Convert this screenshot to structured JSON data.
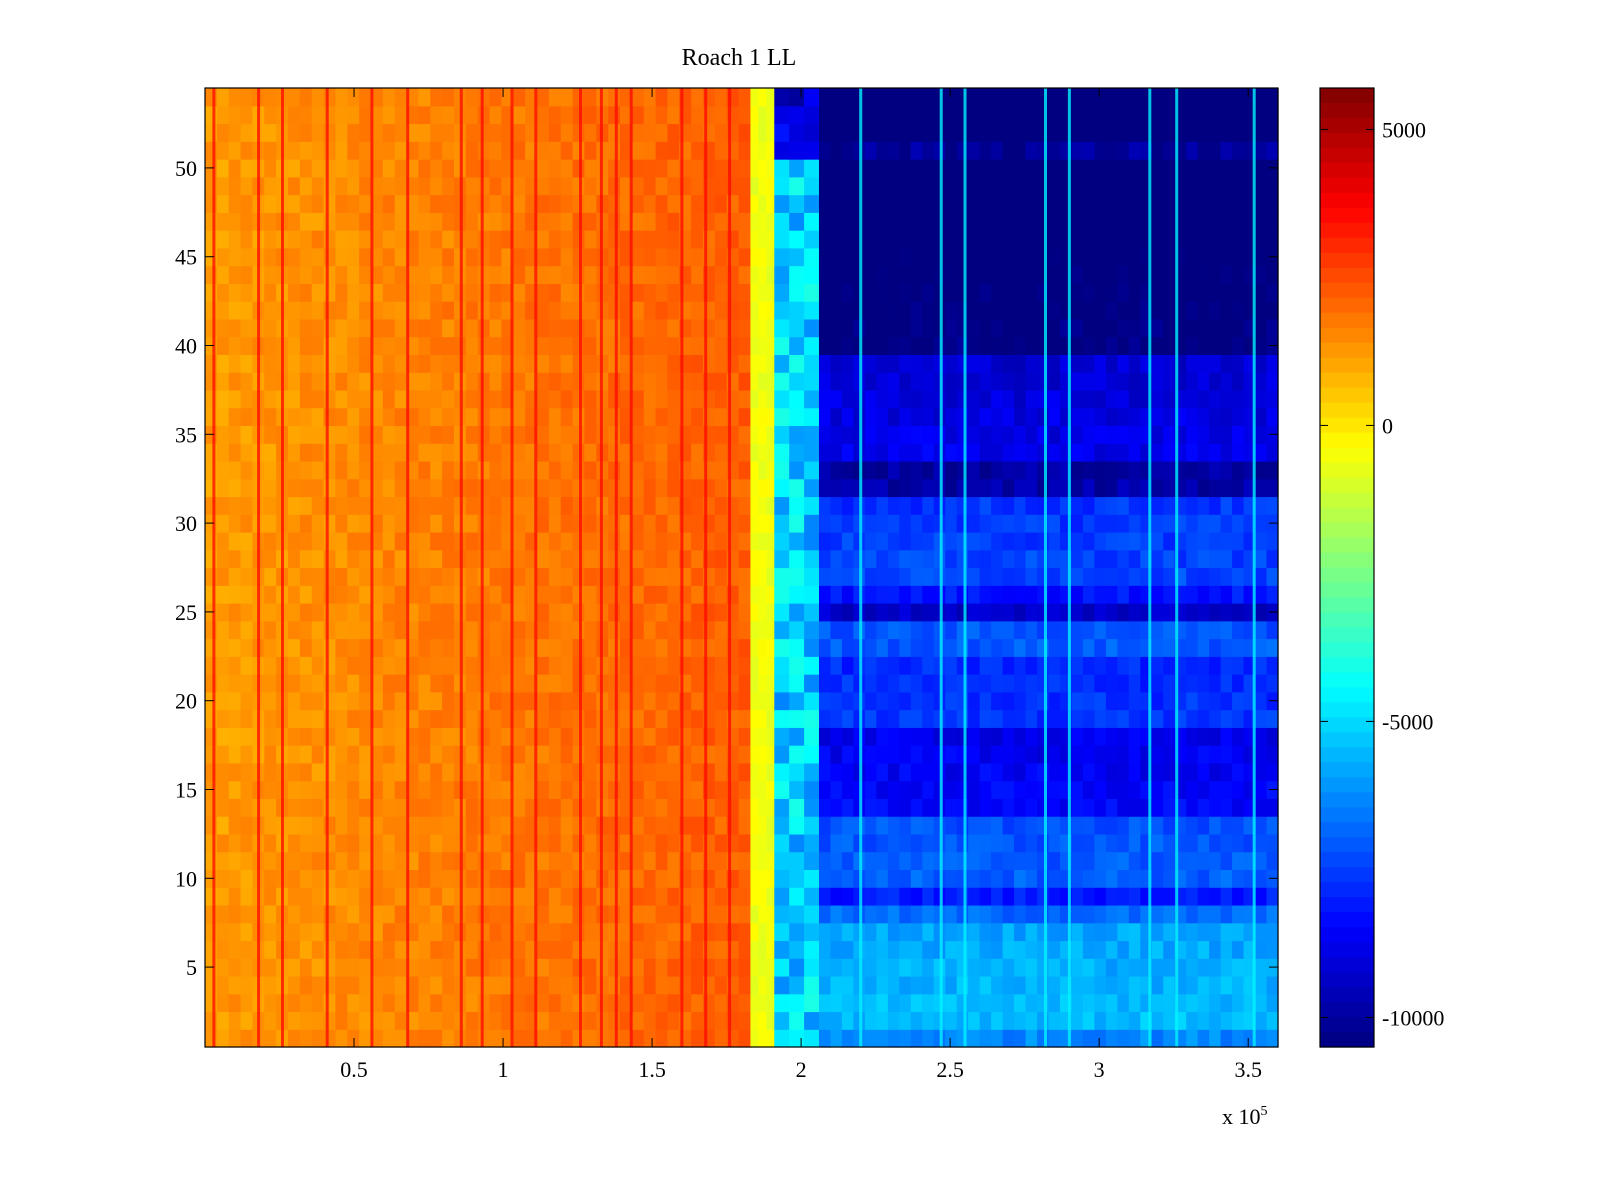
{
  "chart_data": {
    "type": "heatmap",
    "title": "Roach 1 LL",
    "xlabel": "",
    "ylabel": "",
    "x_exponent_label": "x 10",
    "x_exponent_power": "5",
    "xlim": [
      0,
      3.6
    ],
    "ylim": [
      0.5,
      54.5
    ],
    "x_ticks": [
      0.5,
      1,
      1.5,
      2,
      2.5,
      3,
      3.5
    ],
    "x_tick_labels": [
      "0.5",
      "1",
      "1.5",
      "2",
      "2.5",
      "3",
      "3.5"
    ],
    "y_ticks": [
      5,
      10,
      15,
      20,
      25,
      30,
      35,
      40,
      45,
      50
    ],
    "y_tick_labels": [
      "5",
      "10",
      "15",
      "20",
      "25",
      "30",
      "35",
      "40",
      "45",
      "50"
    ],
    "colormap": "jet",
    "clim": [
      -10500,
      5700
    ],
    "colorbar_ticks": [
      5000,
      0,
      -5000,
      -10000
    ],
    "colorbar_tick_labels": [
      "5000",
      "0",
      "-5000",
      "-10000"
    ],
    "rows": 54,
    "segments": [
      {
        "x_start": 0,
        "x_end": 1.83,
        "description": "high region",
        "value_start": 1200,
        "value_end": 2200
      },
      {
        "x_start": 1.83,
        "x_end": 1.91,
        "description": "transition",
        "value": -600
      },
      {
        "x_start": 1.91,
        "x_end": 2.06,
        "description": "mid region",
        "value": -5200
      },
      {
        "x_start": 2.06,
        "x_end": 3.6,
        "description": "low region",
        "value_top": -10300,
        "value_bottom": -6300
      }
    ],
    "dark_rows": [
      9,
      14,
      15,
      16,
      17,
      18,
      25,
      32,
      33,
      40,
      41,
      42,
      43,
      44,
      45,
      46,
      47,
      48,
      49,
      50,
      52,
      53,
      54
    ],
    "bright_rows": [
      23,
      24,
      2,
      3,
      4,
      5,
      6,
      7,
      27,
      28,
      29,
      30,
      31
    ],
    "left_stripes_x": [
      0.03,
      0.18,
      0.26,
      0.41,
      0.56,
      0.68,
      0.86,
      0.93,
      1.03,
      1.11,
      1.26,
      1.33,
      1.38,
      1.43,
      1.6,
      1.68,
      1.76
    ],
    "right_stripes_x": [
      2.2,
      2.47,
      2.55,
      2.82,
      2.9,
      3.17,
      3.26,
      3.52
    ]
  }
}
